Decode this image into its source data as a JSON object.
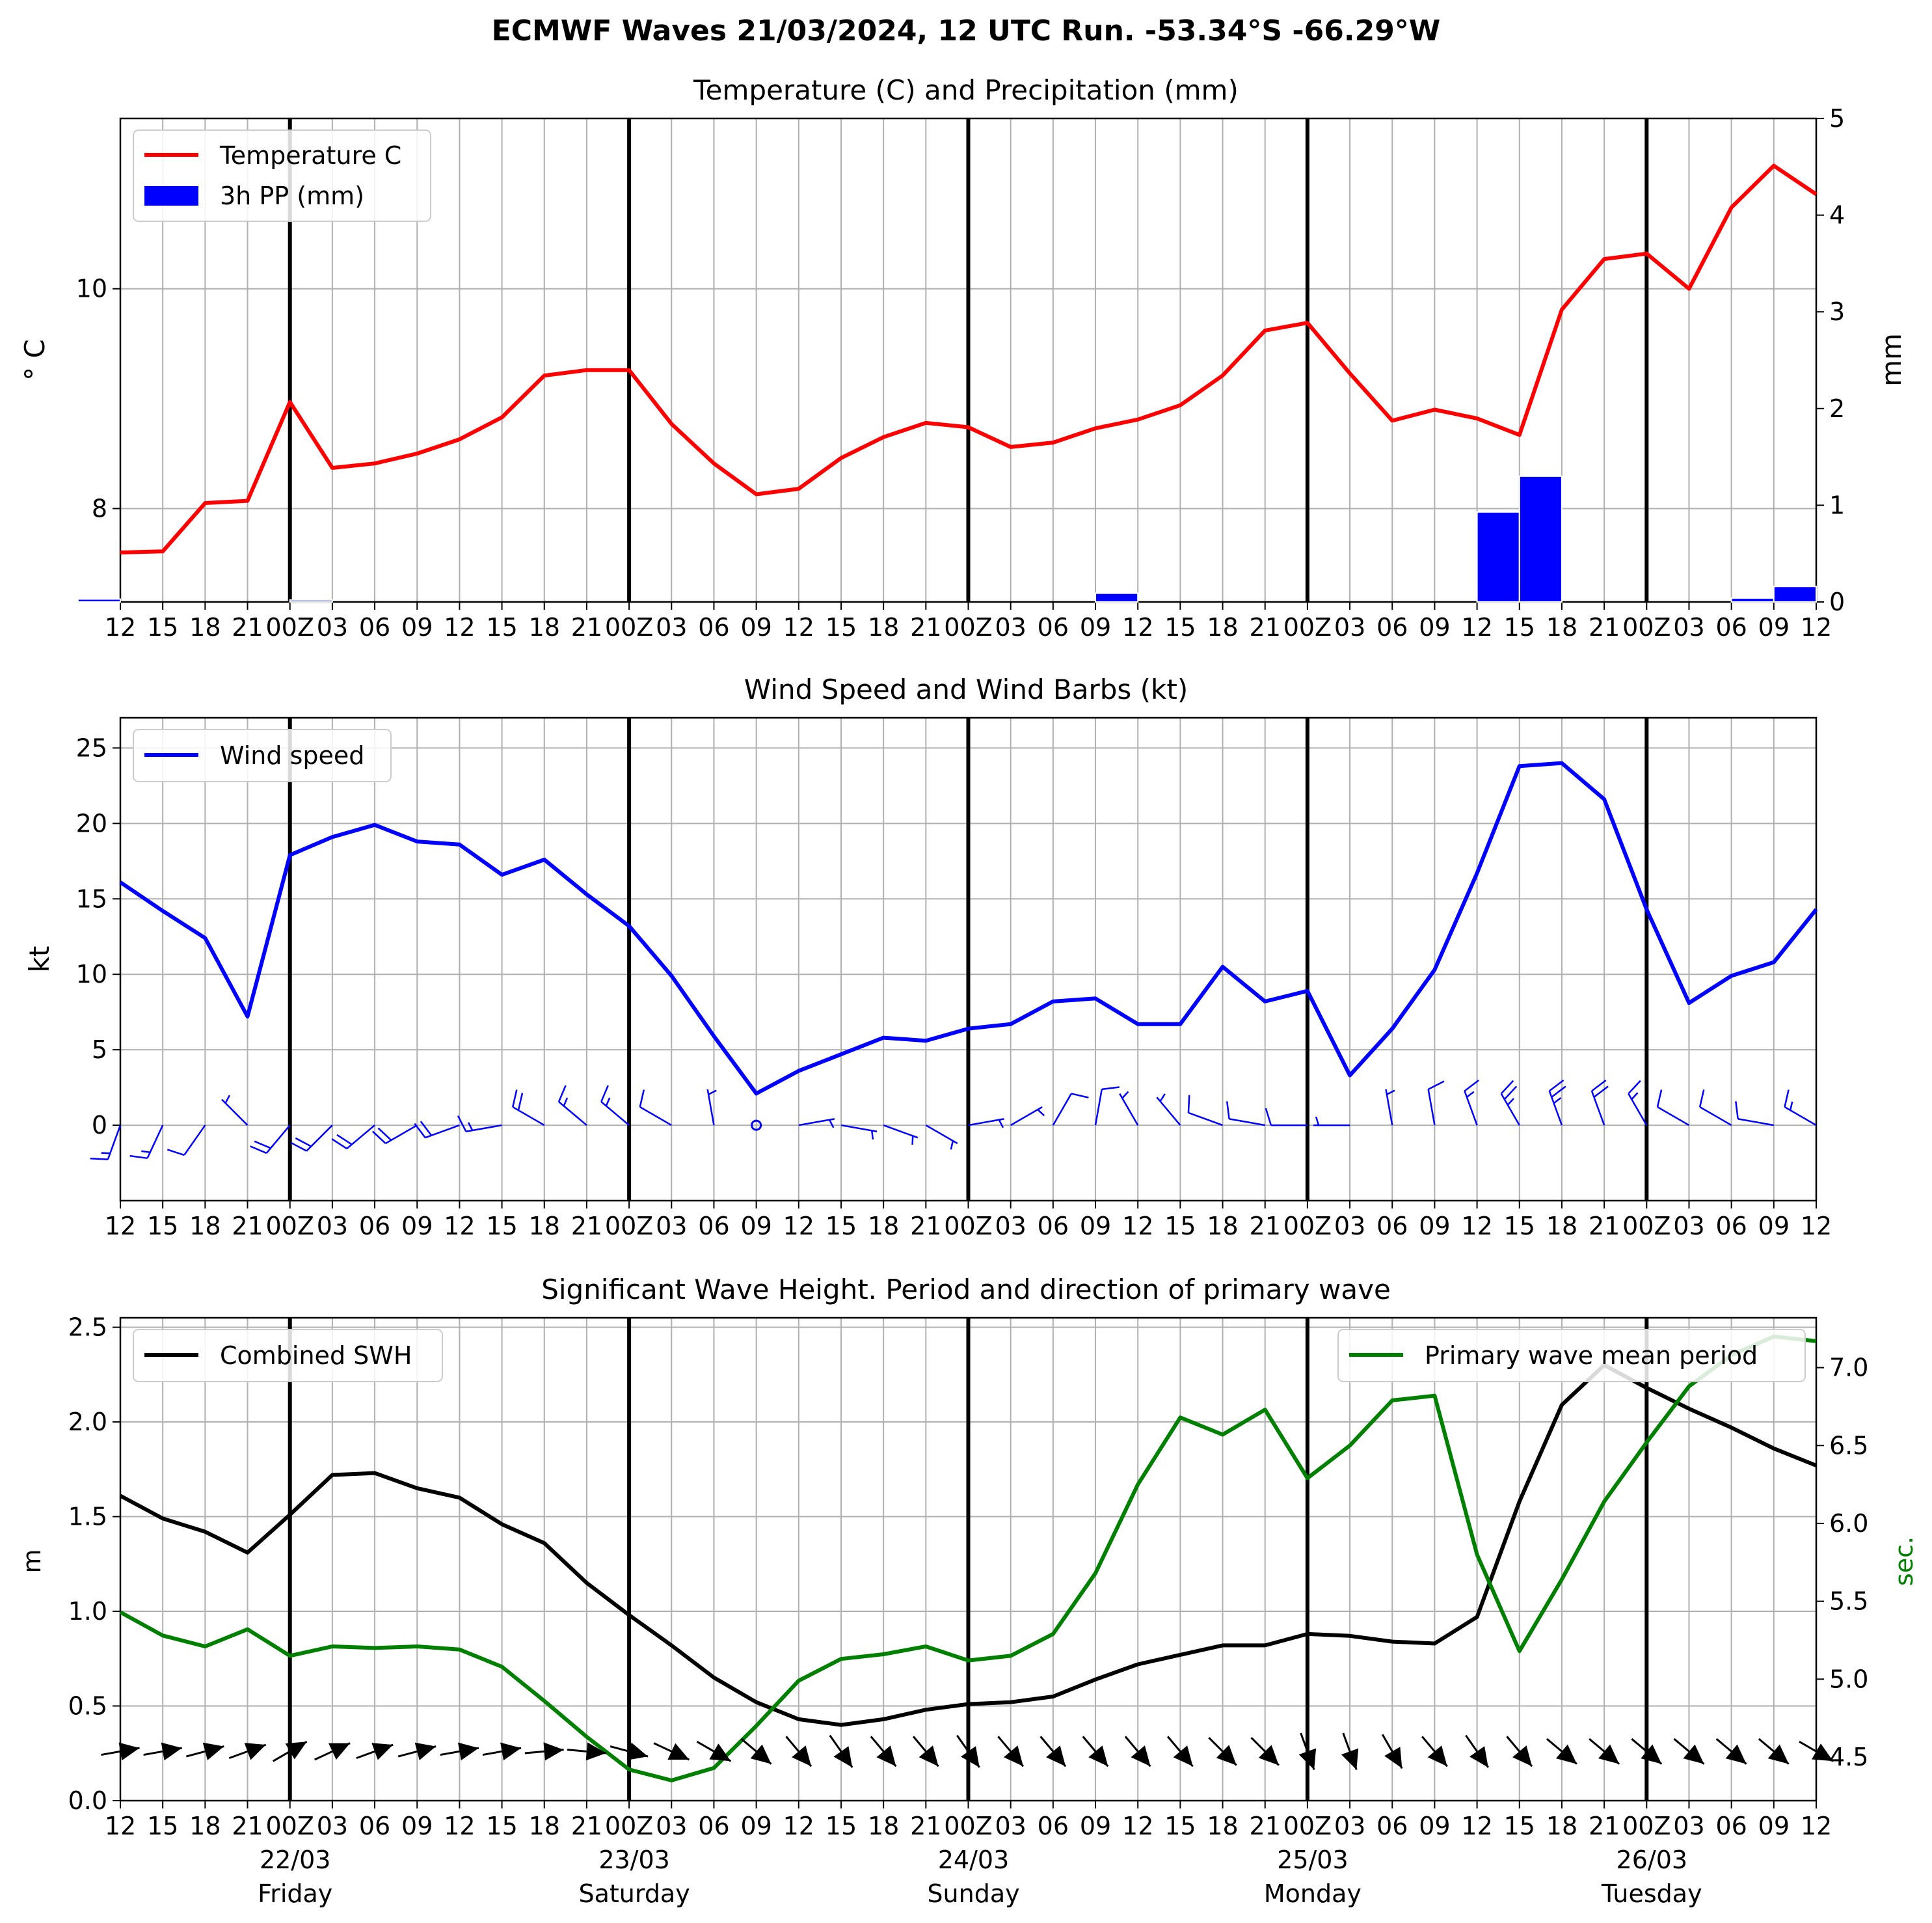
{
  "figure": {
    "suptitle": "ECMWF Waves 21/03/2024, 12 UTC Run. -53.34°S -66.29°W"
  },
  "x_axis": {
    "tick_labels": [
      "12",
      "15",
      "18",
      "21",
      "00Z",
      "03",
      "06",
      "09",
      "12",
      "15",
      "18",
      "21",
      "00Z",
      "03",
      "06",
      "09",
      "12",
      "15",
      "18",
      "21",
      "00Z",
      "03",
      "06",
      "09",
      "12",
      "15",
      "18",
      "21",
      "00Z",
      "03",
      "06",
      "09",
      "12",
      "15",
      "18",
      "21",
      "00Z",
      "03",
      "06",
      "09",
      "12"
    ],
    "date_labels": [
      {
        "index": 4,
        "date": "22/03",
        "day": "Friday"
      },
      {
        "index": 12,
        "date": "23/03",
        "day": "Saturday"
      },
      {
        "index": 20,
        "date": "24/03",
        "day": "Sunday"
      },
      {
        "index": 28,
        "date": "25/03",
        "day": "Monday"
      },
      {
        "index": 36,
        "date": "26/03",
        "day": "Tuesday"
      }
    ],
    "day_boundaries": [
      4,
      12,
      20,
      28,
      36
    ]
  },
  "chart_data": [
    {
      "type": "line",
      "title": "Temperature (C) and Precipitation (mm)",
      "ylabel": "$^\\circ$C",
      "ylabel_display": "° C",
      "ylabel_right": "mm",
      "ylim": [
        7.15,
        11.55
      ],
      "yticks": [
        "8",
        "10"
      ],
      "ylim_right": [
        0,
        5
      ],
      "yticks_right": [
        "0",
        "1",
        "2",
        "3",
        "4",
        "5"
      ],
      "grid": true,
      "legend_position": "upper-left",
      "series": [
        {
          "name": "Temperature C",
          "color": "#ff0000",
          "kind": "line",
          "values": [
            7.6,
            7.61,
            8.05,
            8.07,
            8.97,
            8.37,
            8.41,
            8.5,
            8.63,
            8.83,
            9.21,
            9.26,
            9.26,
            8.77,
            8.41,
            8.13,
            8.18,
            8.46,
            8.65,
            8.78,
            8.74,
            8.56,
            8.6,
            8.73,
            8.81,
            8.94,
            9.21,
            9.62,
            9.69,
            9.23,
            8.8,
            8.9,
            8.82,
            8.67,
            9.81,
            10.27,
            10.32,
            10.0,
            10.74,
            11.12,
            10.86
          ]
        },
        {
          "name": "3h PP (mm)",
          "color": "#0000ff",
          "kind": "bar",
          "values": [
            0.03,
            0,
            0,
            0,
            0,
            0.02,
            0,
            0,
            0,
            0,
            0,
            0,
            0,
            0,
            0,
            0,
            0,
            0,
            0,
            0,
            0,
            0,
            0,
            0,
            0.09,
            0,
            0,
            0,
            0,
            0,
            0,
            0,
            0,
            0.93,
            1.3,
            0,
            0,
            0,
            0,
            0.04,
            0.16
          ]
        }
      ]
    },
    {
      "type": "line",
      "title": "Wind Speed and Wind Barbs (kt)",
      "ylabel": "kt",
      "ylim": [
        -5,
        27
      ],
      "yticks": [
        "0",
        "5",
        "10",
        "15",
        "20",
        "25"
      ],
      "grid": true,
      "legend_position": "upper-left",
      "series": [
        {
          "name": "Wind speed",
          "color": "#0000ff",
          "kind": "line",
          "values": [
            16.1,
            14.2,
            12.4,
            7.2,
            17.9,
            19.1,
            19.9,
            18.8,
            18.6,
            16.6,
            17.6,
            15.3,
            13.2,
            9.9,
            5.9,
            2.1,
            3.6,
            4.7,
            5.8,
            5.6,
            6.4,
            6.7,
            8.2,
            8.4,
            6.7,
            6.7,
            10.5,
            8.2,
            8.9,
            3.3,
            6.4,
            10.3,
            16.7,
            23.8,
            24.0,
            21.6,
            14.3,
            8.1,
            9.9,
            10.8,
            14.3
          ]
        },
        {
          "name": "Wind barbs",
          "color": "#0000ff",
          "kind": "barbs",
          "direction_deg": [
            200,
            205,
            215,
            315,
            220,
            225,
            230,
            240,
            250,
            260,
            300,
            310,
            310,
            300,
            350,
            0,
            80,
            100,
            110,
            120,
            80,
            60,
            30,
            10,
            330,
            320,
            290,
            280,
            270,
            270,
            350,
            350,
            340,
            330,
            340,
            340,
            330,
            300,
            300,
            280,
            300
          ]
        }
      ]
    },
    {
      "type": "line",
      "title": "Significant Wave Height. Period and direction of primary wave",
      "ylabel": "m",
      "ylabel_right": "sec.",
      "ylim": [
        0,
        2.55
      ],
      "yticks": [
        "0.0",
        "0.5",
        "1.0",
        "1.5",
        "2.0",
        "2.5"
      ],
      "ylim_right": [
        4.22,
        7.32
      ],
      "yticks_right": [
        "4.5",
        "5.0",
        "5.5",
        "6.0",
        "6.5",
        "7.0"
      ],
      "grid": true,
      "series": [
        {
          "name": "Combined SWH",
          "color": "#000000",
          "kind": "line",
          "legend_position": "upper-left",
          "values": [
            1.61,
            1.49,
            1.42,
            1.31,
            1.51,
            1.72,
            1.73,
            1.65,
            1.6,
            1.46,
            1.36,
            1.15,
            0.98,
            0.82,
            0.65,
            0.52,
            0.43,
            0.4,
            0.43,
            0.48,
            0.51,
            0.52,
            0.55,
            0.64,
            0.72,
            0.77,
            0.82,
            0.82,
            0.88,
            0.87,
            0.84,
            0.83,
            0.97,
            1.58,
            2.09,
            2.3,
            2.18,
            2.07,
            1.97,
            1.86,
            1.77
          ]
        },
        {
          "name": "Primary wave mean period",
          "color": "#008000",
          "kind": "line",
          "axis": "right",
          "legend_position": "upper-right",
          "values": [
            5.43,
            5.28,
            5.21,
            5.32,
            5.15,
            5.21,
            5.2,
            5.21,
            5.19,
            5.08,
            4.86,
            4.63,
            4.42,
            4.35,
            4.43,
            4.7,
            4.99,
            5.13,
            5.16,
            5.21,
            5.12,
            5.15,
            5.29,
            5.68,
            6.25,
            6.68,
            6.57,
            6.73,
            6.29,
            6.5,
            6.79,
            6.82,
            5.8,
            5.18,
            5.64,
            6.14,
            6.52,
            6.88,
            7.08,
            7.2,
            7.17
          ]
        },
        {
          "name": "Primary wave direction",
          "color": "#000000",
          "kind": "arrows",
          "direction_deg": [
            80,
            80,
            75,
            70,
            60,
            65,
            70,
            75,
            80,
            80,
            85,
            95,
            105,
            115,
            120,
            130,
            140,
            145,
            140,
            140,
            145,
            140,
            140,
            140,
            140,
            140,
            135,
            135,
            160,
            160,
            150,
            140,
            145,
            140,
            130,
            130,
            130,
            130,
            130,
            130,
            120
          ]
        }
      ]
    }
  ]
}
